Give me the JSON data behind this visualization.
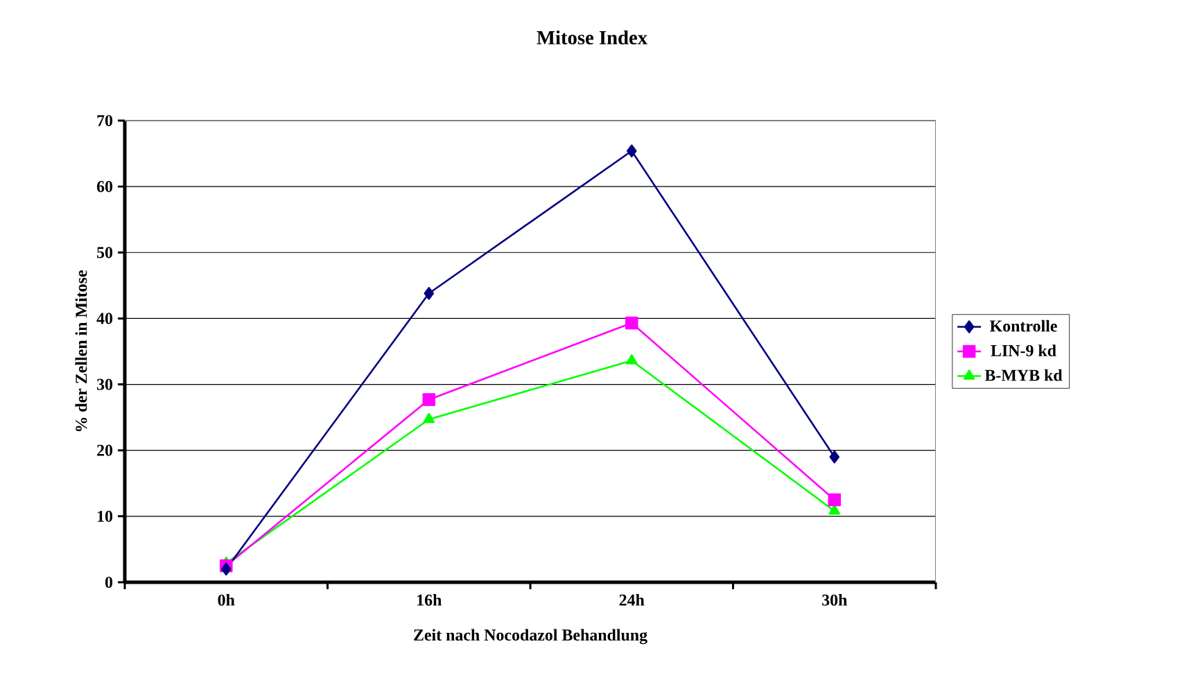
{
  "chart_data": {
    "type": "line",
    "title": "Mitose Index",
    "xlabel": "Zeit nach Nocodazol Behandlung",
    "ylabel": "% der Zellen in Mitose",
    "categories": [
      "0h",
      "16h",
      "24h",
      "30h"
    ],
    "series": [
      {
        "name": "Kontrolle",
        "color": "#000080",
        "marker": "diamond",
        "values": [
          2.0,
          43.8,
          65.4,
          19.0
        ]
      },
      {
        "name": "LIN-9 kd",
        "color": "#ff00ff",
        "marker": "square",
        "values": [
          2.5,
          27.7,
          39.3,
          12.5
        ]
      },
      {
        "name": "B-MYB kd",
        "color": "#00ff00",
        "marker": "triangle",
        "values": [
          2.9,
          24.7,
          33.6,
          10.8
        ]
      }
    ],
    "ylim": [
      0,
      70
    ],
    "yticks": [
      0,
      10,
      20,
      30,
      40,
      50,
      60,
      70
    ],
    "grid": "y",
    "legend": "right",
    "line_style": "solid"
  }
}
